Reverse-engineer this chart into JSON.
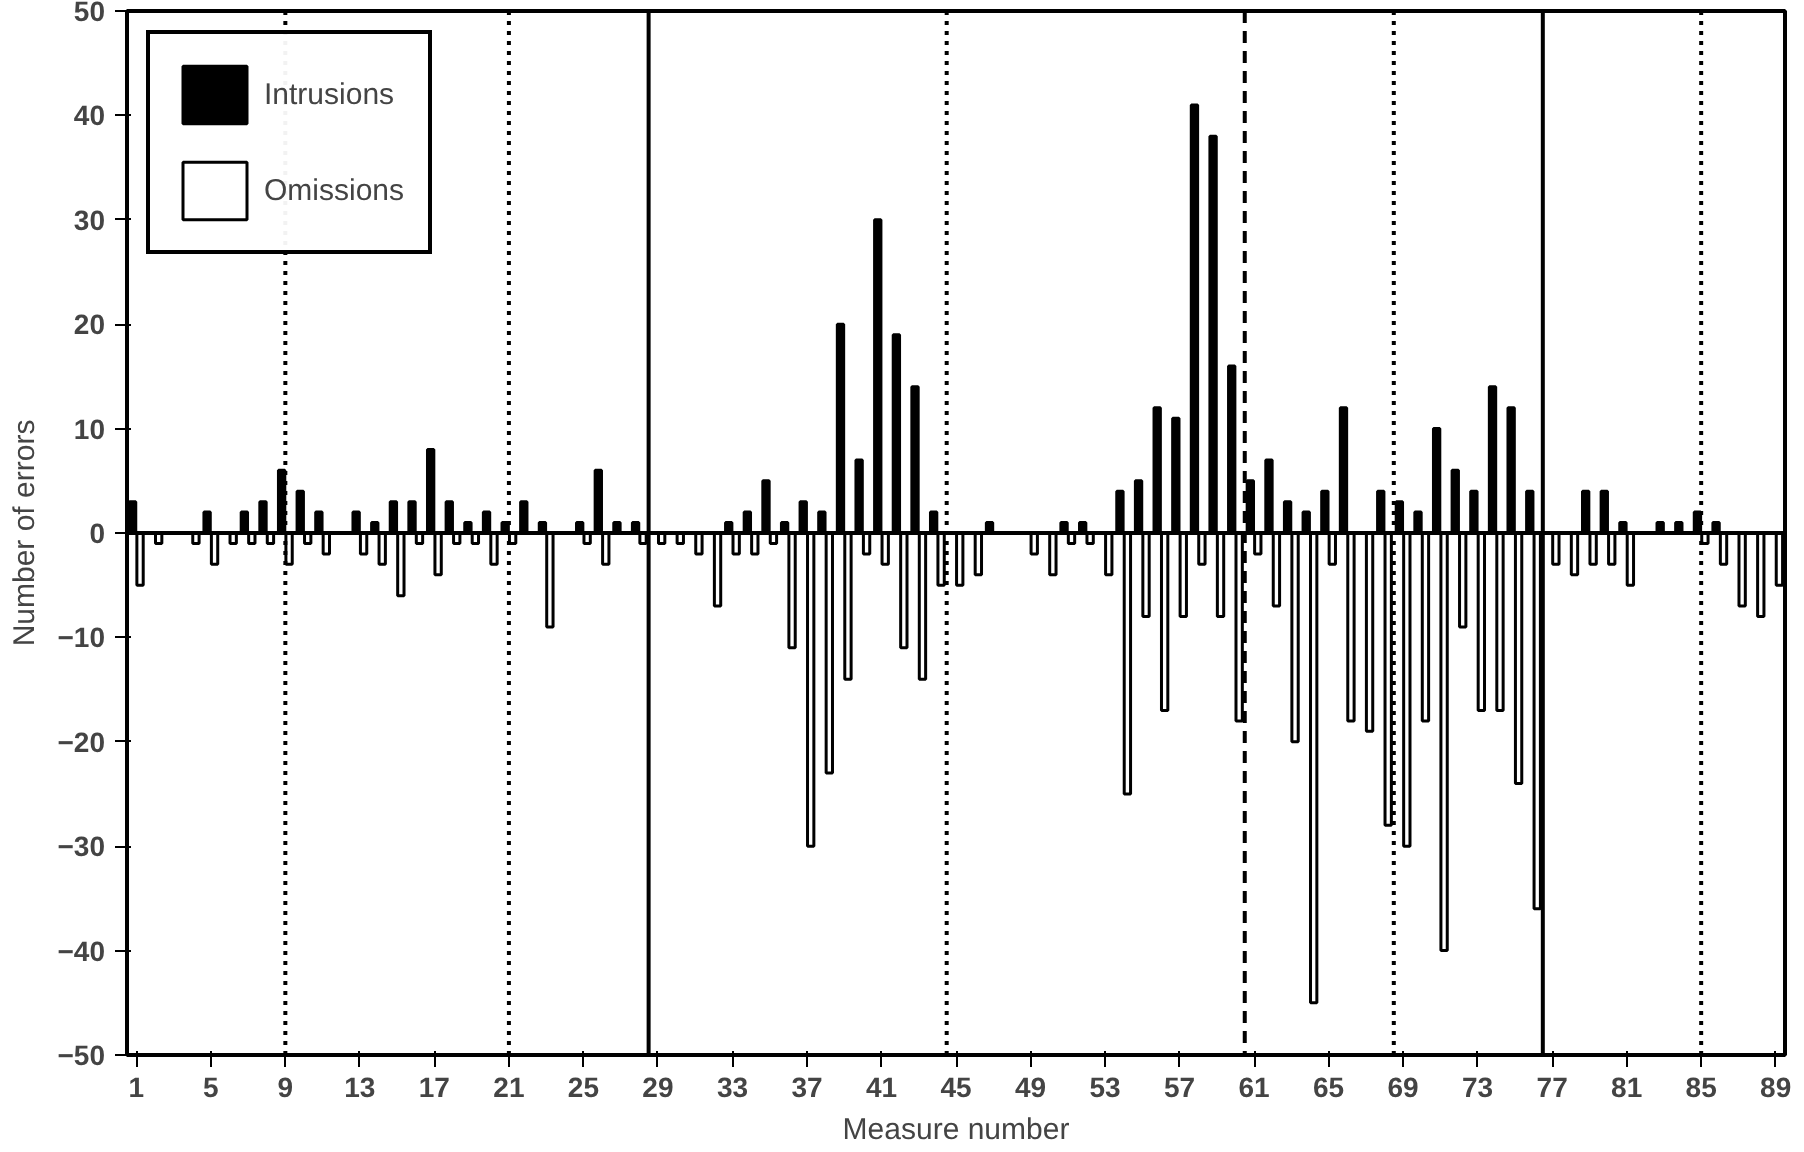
{
  "chart_data": {
    "type": "bar",
    "xlabel": "Measure number",
    "ylabel": "Number of errors",
    "x": [
      1,
      2,
      3,
      4,
      5,
      6,
      7,
      8,
      9,
      10,
      11,
      12,
      13,
      14,
      15,
      16,
      17,
      18,
      19,
      20,
      21,
      22,
      23,
      24,
      25,
      26,
      27,
      28,
      29,
      30,
      31,
      32,
      33,
      34,
      35,
      36,
      37,
      38,
      39,
      40,
      41,
      42,
      43,
      44,
      45,
      46,
      47,
      48,
      49,
      50,
      51,
      52,
      53,
      54,
      55,
      56,
      57,
      58,
      59,
      60,
      61,
      62,
      63,
      64,
      65,
      66,
      67,
      68,
      69,
      70,
      71,
      72,
      73,
      74,
      75,
      76,
      77,
      78,
      79,
      80,
      81,
      82,
      83,
      84,
      85,
      86,
      87,
      88,
      89
    ],
    "series": [
      {
        "name": "Intrusions",
        "color": "#000000",
        "values": [
          3,
          null,
          null,
          null,
          2,
          null,
          2,
          3,
          6,
          4,
          2,
          null,
          2,
          1,
          3,
          3,
          8,
          3,
          1,
          2,
          1,
          3,
          1,
          null,
          1,
          6,
          1,
          1,
          null,
          null,
          null,
          null,
          1,
          2,
          5,
          1,
          3,
          2,
          20,
          7,
          30,
          19,
          14,
          2,
          null,
          null,
          1,
          null,
          null,
          null,
          1,
          1,
          null,
          4,
          5,
          12,
          11,
          41,
          38,
          16,
          5,
          7,
          3,
          2,
          4,
          12,
          null,
          4,
          3,
          2,
          10,
          6,
          4,
          14,
          12,
          4,
          null,
          null,
          4,
          4,
          1,
          null,
          1,
          1,
          2,
          1,
          null,
          null,
          null
        ]
      },
      {
        "name": "Omissions",
        "color": "#ffffff",
        "values": [
          -5,
          -1,
          null,
          -1,
          -3,
          -1,
          -1,
          -1,
          -3,
          -1,
          -2,
          null,
          -2,
          -3,
          -6,
          -1,
          -4,
          -1,
          -1,
          -3,
          -1,
          null,
          -9,
          null,
          -1,
          -3,
          null,
          -1,
          -1,
          -1,
          -2,
          -7,
          -2,
          -2,
          -1,
          -11,
          -30,
          -23,
          -14,
          -2,
          -3,
          -11,
          -14,
          -5,
          -5,
          -4,
          null,
          null,
          -2,
          -4,
          -1,
          -1,
          -4,
          -25,
          -8,
          -17,
          -8,
          -3,
          -8,
          -18,
          -2,
          -7,
          -20,
          -45,
          -3,
          -18,
          -19,
          -28,
          -30,
          -18,
          -40,
          -9,
          -17,
          -17,
          -24,
          -36,
          -3,
          -4,
          -3,
          -3,
          -5,
          null,
          null,
          null,
          -1,
          -3,
          -7,
          -8,
          -5
        ]
      }
    ],
    "xlim": [
      0.5,
      89.5
    ],
    "xticks": [
      1,
      5,
      9,
      13,
      17,
      21,
      25,
      29,
      33,
      37,
      41,
      45,
      49,
      53,
      57,
      61,
      65,
      69,
      73,
      77,
      81,
      85,
      89
    ],
    "ylim": [
      -50,
      50
    ],
    "yticks": [
      -50,
      -40,
      -30,
      -20,
      -10,
      0,
      10,
      20,
      30,
      40,
      50
    ],
    "ref_lines": [
      {
        "axis": "x",
        "value": 9,
        "line_style": "dotted"
      },
      {
        "axis": "x",
        "value": 21,
        "line_style": "dotted"
      },
      {
        "axis": "x",
        "value": 28.5,
        "line_style": "solid"
      },
      {
        "axis": "x",
        "value": 44.5,
        "line_style": "dotted"
      },
      {
        "axis": "x",
        "value": 60.5,
        "line_style": "dashed"
      },
      {
        "axis": "x",
        "value": 68.5,
        "line_style": "dotted"
      },
      {
        "axis": "x",
        "value": 76.5,
        "line_style": "solid"
      },
      {
        "axis": "x",
        "value": 85,
        "line_style": "dotted"
      }
    ],
    "grid": false,
    "legend": "top left"
  }
}
